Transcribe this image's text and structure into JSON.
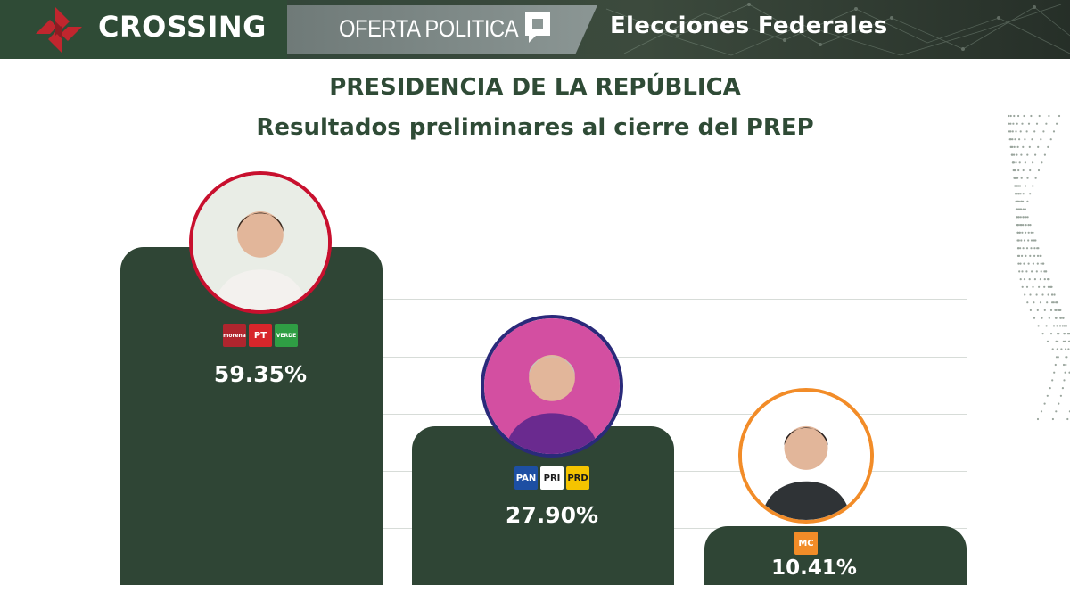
{
  "header": {
    "brand_name": "CROSSING",
    "section_name": "OFERTA POLITICA",
    "right_title": "Elecciones Federales"
  },
  "titles": {
    "line1": "PRESIDENCIA DE LA REPÚBLICA",
    "line2": "Resultados preliminares al cierre del PREP"
  },
  "colors": {
    "brand_green": "#2f4b36",
    "bar": "#2f4535",
    "ring_1": "#c8102e",
    "ring_2": "#2a2a7a",
    "ring_3": "#f28c28"
  },
  "candidates": [
    {
      "percent_label": "59.35%",
      "parties": [
        {
          "label": "morena",
          "color": "#b0252e"
        },
        {
          "label": "PT",
          "color": "#d7262b"
        },
        {
          "label": "VERDE",
          "color": "#2f9e44"
        }
      ]
    },
    {
      "percent_label": "27.90%",
      "parties": [
        {
          "label": "PAN",
          "color": "#1d4fa3"
        },
        {
          "label": "PRI",
          "color": "#ffffff"
        },
        {
          "label": "PRD",
          "color": "#f5c400"
        }
      ]
    },
    {
      "percent_label": "10.41%",
      "parties": [
        {
          "label": "MC",
          "color": "#f28c28"
        }
      ]
    }
  ],
  "chart_data": {
    "type": "bar",
    "title": "PRESIDENCIA DE LA REPÚBLICA",
    "subtitle": "Resultados preliminares al cierre del PREP",
    "categories": [
      "",
      "",
      ""
    ],
    "values": [
      59.35,
      27.9,
      10.41
    ],
    "data_labels": [
      "59.35%",
      "27.90%",
      "10.41%"
    ],
    "xlabel": "",
    "ylabel": "",
    "ylim": [
      0,
      59.35
    ],
    "grid": true,
    "legend": "none"
  }
}
